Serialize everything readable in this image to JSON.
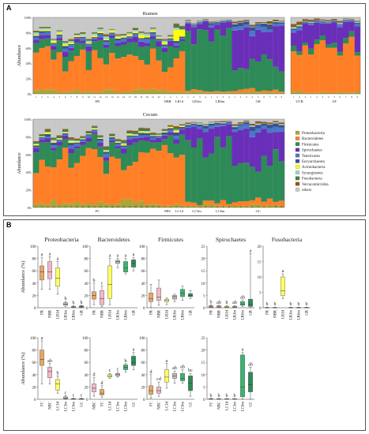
{
  "panel_labels": {
    "a": "A",
    "b": "B"
  },
  "chart_data": [
    {
      "type": "bar",
      "stacked": true,
      "title": "Rumen",
      "ylabel": "Abundance",
      "yticks": [
        "0%",
        "20%",
        "40%",
        "60%",
        "80%",
        "100%"
      ],
      "groups": [
        "FR",
        "NBR",
        "LR1d",
        "LR3m",
        "LR6m",
        "GR",
        "UCB",
        "AF"
      ],
      "group_sizes": [
        22,
        2,
        2,
        4,
        4,
        9,
        3,
        9
      ],
      "taxa": [
        "Proteobacteria",
        "Bacteroidetes",
        "Firmicutes",
        "Spirochaetes",
        "Tenericutes",
        "Euryarchaeota",
        "Actinobacteria",
        "Synergistetes",
        "Fusobacteria",
        "Verrucomicrobia",
        "others"
      ],
      "taxa_colors": [
        "#a8a53a",
        "#ff7f27",
        "#2e8b57",
        "#6a2fb8",
        "#4a78c8",
        "#3c5090",
        "#ffff00",
        "#9bd4d0",
        "#4e7a3e",
        "#8b5a14",
        "#c8c8c8"
      ],
      "grid": false
    },
    {
      "type": "bar",
      "stacked": true,
      "title": "Cecum",
      "ylabel": "Abundance",
      "yticks": [
        "0%",
        "20%",
        "40%",
        "60%",
        "80%",
        "100%"
      ],
      "groups": [
        "FC",
        "NBC",
        "LC1d",
        "LC3m",
        "LC6m",
        "GC"
      ],
      "group_sizes": [
        22,
        2,
        2,
        4,
        4,
        9
      ],
      "legend": [
        "Proteobacteria",
        "Bacteroidetes",
        "Firmicutes",
        "Spirochaetes",
        "Tenericutes",
        "Euryarchaeota",
        "Actinobacteria",
        "Synergistetes",
        "Fusobacteria",
        "Verrucomicrobia",
        "others"
      ],
      "legend_position": "right",
      "grid": false
    },
    {
      "type": "boxplot",
      "title": "Proteobacteria",
      "ylabel": "Abundance (%)",
      "ylim": [
        0,
        100
      ],
      "yticks": [
        0,
        20,
        40,
        60,
        80,
        100
      ],
      "categories": [
        "FR",
        "NBR",
        "LR1d",
        "LR3m",
        "LR6m",
        "GR"
      ],
      "colors": [
        "#e6a766",
        "#f2b8c6",
        "#ffff66",
        "#bbbbbb",
        "#3cb371",
        "#2e8b57"
      ],
      "boxes": [
        {
          "min": 30,
          "q1": 45,
          "median": 58,
          "q3": 68,
          "max": 82,
          "letter": "a"
        },
        {
          "min": 30,
          "q1": 47,
          "median": 58,
          "q3": 75,
          "max": 83,
          "letter": "a"
        },
        {
          "min": 22,
          "q1": 35,
          "median": 48,
          "q3": 65,
          "max": 75,
          "letter": "a"
        },
        {
          "min": 2,
          "q1": 4,
          "median": 6,
          "q3": 8,
          "max": 10,
          "letter": "b"
        },
        {
          "min": 0,
          "q1": 1,
          "median": 1.5,
          "q3": 2,
          "max": 3,
          "letter": "b"
        },
        {
          "min": 0,
          "q1": 1,
          "median": 2,
          "q3": 3,
          "max": 4,
          "letter": "b"
        }
      ]
    },
    {
      "type": "boxplot",
      "title": "Bacteroidetes",
      "ylim": [
        0,
        100
      ],
      "yticks": [
        0,
        20,
        40,
        60,
        80,
        100
      ],
      "categories": [
        "FR",
        "NBR",
        "LR1d",
        "LR3m",
        "LR6m",
        "GR"
      ],
      "colors": [
        "#e6a766",
        "#f2b8c6",
        "#ffff66",
        "#bbbbbb",
        "#3cb371",
        "#2e8b57"
      ],
      "boxes": [
        {
          "min": 5,
          "q1": 14,
          "median": 20,
          "q3": 26,
          "max": 40,
          "letter": "b"
        },
        {
          "min": 2,
          "q1": 5,
          "median": 15,
          "q3": 28,
          "max": 35,
          "letter": "c"
        },
        {
          "min": 5,
          "q1": 15,
          "median": 38,
          "q3": 68,
          "max": 80,
          "letter": "a"
        },
        {
          "min": 65,
          "q1": 72,
          "median": 75,
          "q3": 77,
          "max": 80,
          "letter": "a"
        },
        {
          "min": 55,
          "q1": 58,
          "median": 65,
          "q3": 75,
          "max": 80,
          "letter": "a"
        },
        {
          "min": 60,
          "q1": 66,
          "median": 72,
          "q3": 78,
          "max": 82,
          "letter": "a"
        }
      ]
    },
    {
      "type": "boxplot",
      "title": "Firmicutes",
      "ylim": [
        0,
        100
      ],
      "yticks": [
        0,
        20,
        40,
        60,
        80,
        100
      ],
      "categories": [
        "FR",
        "NBR",
        "LR1d",
        "LR3m",
        "LR6m",
        "GR"
      ],
      "colors": [
        "#e6a766",
        "#f2b8c6",
        "#ffff66",
        "#bbbbbb",
        "#3cb371",
        "#2e8b57"
      ],
      "boxes": [
        {
          "min": 0,
          "q1": 10,
          "median": 15,
          "q3": 24,
          "max": 38,
          "letter": ""
        },
        {
          "min": 4,
          "q1": 12,
          "median": 17,
          "q3": 32,
          "max": 45,
          "letter": ""
        },
        {
          "min": 5,
          "q1": 10,
          "median": 12,
          "q3": 14,
          "max": 16,
          "letter": ""
        },
        {
          "min": 10,
          "q1": 14,
          "median": 18,
          "q3": 20,
          "max": 22,
          "letter": ""
        },
        {
          "min": 12,
          "q1": 18,
          "median": 24,
          "q3": 30,
          "max": 35,
          "letter": ""
        },
        {
          "min": 15,
          "q1": 18,
          "median": 20,
          "q3": 23,
          "max": 28,
          "letter": ""
        }
      ]
    },
    {
      "type": "boxplot",
      "title": "Spirochaetes",
      "ylim": [
        0,
        25
      ],
      "yticks": [
        0,
        5,
        10,
        15,
        20,
        25
      ],
      "categories": [
        "FR",
        "NBR",
        "LR1d",
        "LR3m",
        "LR6m",
        "GR"
      ],
      "colors": [
        "#e6a766",
        "#f2b8c6",
        "#ffff66",
        "#bbbbbb",
        "#3cb371",
        "#2e8b57"
      ],
      "boxes": [
        {
          "min": 0,
          "q1": 0.2,
          "median": 0.4,
          "q3": 0.8,
          "max": 1.2,
          "letter": "b"
        },
        {
          "min": 0,
          "q1": 0.2,
          "median": 0.5,
          "q3": 0.8,
          "max": 1.0,
          "letter": "ab"
        },
        {
          "min": 0,
          "q1": 0.1,
          "median": 0.3,
          "q3": 0.6,
          "max": 0.9,
          "letter": "b"
        },
        {
          "min": 0,
          "q1": 0.1,
          "median": 0.3,
          "q3": 0.6,
          "max": 0.9,
          "letter": "ab"
        },
        {
          "min": 0.5,
          "q1": 1.0,
          "median": 1.5,
          "q3": 2.5,
          "max": 3.0,
          "letter": "ab"
        },
        {
          "min": 0,
          "q1": 0.5,
          "median": 1.5,
          "q3": 3.5,
          "max": 22,
          "letter": "a"
        }
      ]
    },
    {
      "type": "boxplot",
      "title": "Fusobacteria",
      "ylim": [
        0,
        20
      ],
      "yticks": [
        0,
        5,
        10,
        15,
        20
      ],
      "categories": [
        "FR",
        "NBR",
        "LR1d",
        "LR3m",
        "LR6m",
        "GR"
      ],
      "colors": [
        "#e6a766",
        "#f2b8c6",
        "#ffff66",
        "#bbbbbb",
        "#3cb371",
        "#2e8b57"
      ],
      "boxes": [
        {
          "min": 0,
          "q1": 0,
          "median": 0,
          "q3": 0.1,
          "max": 0.2,
          "letter": "b"
        },
        {
          "min": 0,
          "q1": 0,
          "median": 0,
          "q3": 0.1,
          "max": 0.2,
          "letter": "b"
        },
        {
          "min": 3,
          "q1": 4,
          "median": 5.5,
          "q3": 10,
          "max": 11,
          "letter": "a"
        },
        {
          "min": 0,
          "q1": 0,
          "median": 0,
          "q3": 0.1,
          "max": 0.2,
          "letter": "b"
        },
        {
          "min": 0,
          "q1": 0,
          "median": 0,
          "q3": 0.1,
          "max": 0.2,
          "letter": "b"
        },
        {
          "min": 0,
          "q1": 0,
          "median": 0,
          "q3": 0.1,
          "max": 0.2,
          "letter": "b"
        }
      ]
    },
    {
      "type": "boxplot",
      "title": "",
      "ylabel": "Abundance (%)",
      "ylim": [
        0,
        100
      ],
      "yticks": [
        0,
        20,
        40,
        60,
        80,
        100
      ],
      "categories": [
        "FC",
        "NBC",
        "LC1d",
        "LC3m",
        "LC6m",
        "GC"
      ],
      "colors": [
        "#e6a766",
        "#f2b8c6",
        "#ffff66",
        "#bbbbbb",
        "#3cb371",
        "#2e8b57"
      ],
      "boxes": [
        {
          "min": 25,
          "q1": 55,
          "median": 65,
          "q3": 80,
          "max": 95,
          "letter": "a"
        },
        {
          "min": 25,
          "q1": 35,
          "median": 45,
          "q3": 52,
          "max": 58,
          "letter": "ab"
        },
        {
          "min": 10,
          "q1": 15,
          "median": 25,
          "q3": 32,
          "max": 38,
          "letter": "b"
        },
        {
          "min": 0,
          "q1": 1,
          "median": 2,
          "q3": 4,
          "max": 6,
          "letter": "c"
        },
        {
          "min": 0,
          "q1": 0,
          "median": 0.5,
          "q3": 1,
          "max": 2,
          "letter": "c"
        },
        {
          "min": 0,
          "q1": 0,
          "median": 0.5,
          "q3": 1,
          "max": 2,
          "letter": "c"
        }
      ]
    },
    {
      "type": "boxplot",
      "title": "",
      "ylim": [
        0,
        100
      ],
      "yticks": [
        0,
        20,
        40,
        60,
        80,
        100
      ],
      "categories": [
        "NBC",
        "FC",
        "LC1d",
        "LC3m",
        "LC6m",
        "GC"
      ],
      "colors": [
        "#f2b8c6",
        "#e6a766",
        "#ffff66",
        "#bbbbbb",
        "#3cb371",
        "#2e8b57"
      ],
      "boxes": [
        {
          "min": 5,
          "q1": 12,
          "median": 18,
          "q3": 25,
          "max": 35,
          "letter": "d"
        },
        {
          "min": 3,
          "q1": 7,
          "median": 10,
          "q3": 16,
          "max": 22,
          "letter": "d"
        },
        {
          "min": 34,
          "q1": 36,
          "median": 38,
          "q3": 40,
          "max": 42,
          "letter": "c"
        },
        {
          "min": 36,
          "q1": 38,
          "median": 40,
          "q3": 42,
          "max": 44,
          "letter": "c"
        },
        {
          "min": 44,
          "q1": 48,
          "median": 52,
          "q3": 56,
          "max": 58,
          "letter": "b"
        },
        {
          "min": 48,
          "q1": 55,
          "median": 60,
          "q3": 70,
          "max": 76,
          "letter": "a"
        }
      ]
    },
    {
      "type": "boxplot",
      "title": "",
      "ylim": [
        0,
        100
      ],
      "yticks": [
        0,
        20,
        40,
        60,
        80,
        100
      ],
      "categories": [
        "FC",
        "NBC",
        "LC1d",
        "LC3m",
        "LC6m",
        "GC"
      ],
      "colors": [
        "#e6a766",
        "#f2b8c6",
        "#ffff66",
        "#bbbbbb",
        "#3cb371",
        "#2e8b57"
      ],
      "boxes": [
        {
          "min": 2,
          "q1": 8,
          "median": 14,
          "q3": 22,
          "max": 40,
          "letter": "d"
        },
        {
          "min": 5,
          "q1": 10,
          "median": 14,
          "q3": 20,
          "max": 28,
          "letter": "cd"
        },
        {
          "min": 18,
          "q1": 28,
          "median": 36,
          "q3": 48,
          "max": 58,
          "letter": "a"
        },
        {
          "min": 26,
          "q1": 34,
          "median": 38,
          "q3": 42,
          "max": 46,
          "letter": "ab"
        },
        {
          "min": 26,
          "q1": 30,
          "median": 34,
          "q3": 42,
          "max": 48,
          "letter": "ab"
        },
        {
          "min": 5,
          "q1": 14,
          "median": 26,
          "q3": 38,
          "max": 42,
          "letter": "bc"
        }
      ]
    },
    {
      "type": "boxplot",
      "title": "",
      "ylim": [
        0,
        25
      ],
      "yticks": [
        0,
        5,
        10,
        15,
        20,
        25
      ],
      "categories": [
        "FC",
        "NBC",
        "LC1d",
        "LC3m",
        "LC6m",
        "GC"
      ],
      "colors": [
        "#e6a766",
        "#f2b8c6",
        "#ffff66",
        "#bbbbbb",
        "#3cb371",
        "#2e8b57"
      ],
      "boxes": [
        {
          "min": 0,
          "q1": 0,
          "median": 0.1,
          "q3": 0.2,
          "max": 0.4,
          "letter": "b"
        },
        {
          "min": 0,
          "q1": 0,
          "median": 0.1,
          "q3": 0.2,
          "max": 0.3,
          "letter": "b"
        },
        {
          "min": 0,
          "q1": 0,
          "median": 0.1,
          "q3": 0.2,
          "max": 0.3,
          "letter": "b"
        },
        {
          "min": 0,
          "q1": 0,
          "median": 0.1,
          "q3": 0.2,
          "max": 0.3,
          "letter": "b"
        },
        {
          "min": 0,
          "q1": 1,
          "median": 5,
          "q3": 18,
          "max": 19,
          "letter": "a"
        },
        {
          "min": 0,
          "q1": 3,
          "median": 6,
          "q3": 11,
          "max": 13,
          "letter": "ab"
        }
      ]
    }
  ]
}
